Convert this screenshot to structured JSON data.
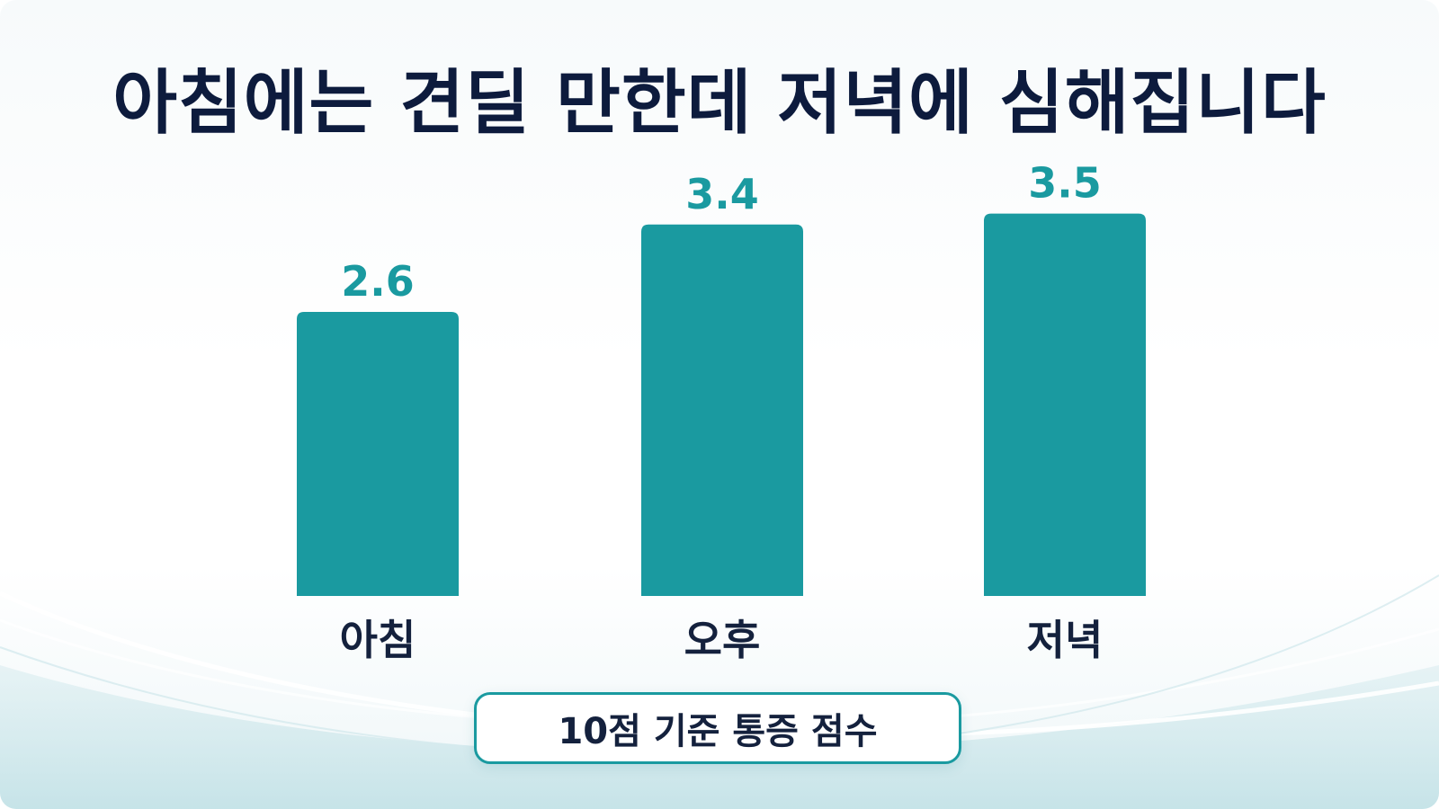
{
  "title": "아침에는 견딜 만한데 저녁에 심해집니다",
  "caption": "10점 기준 통증 점수",
  "colors": {
    "bar": "#1a9aa0",
    "value_label": "#1a9aa0",
    "title": "#0d1b3d",
    "category_label": "#14213d"
  },
  "chart_data": {
    "type": "bar",
    "categories": [
      "아침",
      "오후",
      "저녁"
    ],
    "values": [
      2.6,
      3.4,
      3.5
    ],
    "value_labels": [
      "2.6",
      "3.4",
      "3.5"
    ],
    "title": "아침에는 견딜 만한데 저녁에 심해집니다",
    "xlabel": "",
    "ylabel": "",
    "ylim": [
      0,
      4.55
    ],
    "grid": false,
    "legend": "none"
  }
}
